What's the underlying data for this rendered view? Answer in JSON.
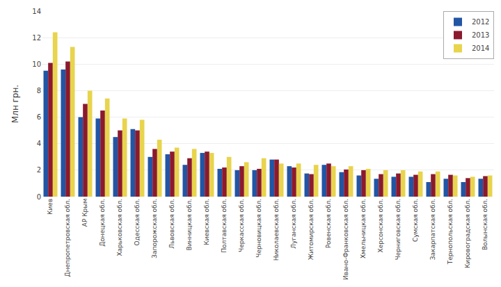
{
  "chart_data": {
    "type": "bar",
    "ylabel": "Млн грн.",
    "categories": [
      "Киев",
      "Днепропетровская обл.",
      "АР Крым",
      "Донецкая обл.",
      "Харьковская обл.",
      "Одесская обл.",
      "Запорожская обл.",
      "Львовская обл.",
      "Винницкая обл.",
      "Киевская обл.",
      "Полтавская обл.",
      "Черкасская обл.",
      "Черновицкая обл.",
      "Николаевская обл.",
      "Луганская обл.",
      "Житомирская обл.",
      "Ровенская обл.",
      "Ивано-Франковская обл.",
      "Хмельницкая обл.",
      "Херсонская обл.",
      "Черниговская обл.",
      "Сумская обл.",
      "Закарпатская обл.",
      "Тернопольская обл.",
      "Кировоградская обл.",
      "Волынская обл."
    ],
    "series": [
      {
        "name": "2012",
        "color": "#2255A4",
        "values": [
          9.5,
          9.6,
          6.0,
          5.9,
          4.5,
          5.1,
          3.0,
          3.2,
          2.4,
          3.3,
          2.1,
          2.0,
          2.0,
          2.8,
          2.3,
          1.75,
          2.4,
          1.85,
          1.6,
          1.35,
          1.5,
          1.5,
          1.1,
          1.35,
          1.1,
          1.35
        ]
      },
      {
        "name": "2013",
        "color": "#8B1A2E",
        "values": [
          10.1,
          10.2,
          7.0,
          6.5,
          5.0,
          5.0,
          3.6,
          3.4,
          2.9,
          3.4,
          2.2,
          2.3,
          2.1,
          2.8,
          2.2,
          1.7,
          2.5,
          2.05,
          2.0,
          1.7,
          1.75,
          1.65,
          1.7,
          1.65,
          1.4,
          1.55
        ]
      },
      {
        "name": "2014",
        "color": "#E8D44D",
        "values": [
          12.4,
          11.3,
          8.0,
          7.4,
          5.9,
          5.8,
          4.3,
          3.7,
          3.6,
          3.3,
          3.0,
          2.6,
          2.9,
          2.5,
          2.5,
          2.4,
          2.3,
          2.3,
          2.1,
          2.0,
          2.0,
          1.9,
          1.9,
          1.6,
          1.5,
          1.6
        ]
      }
    ],
    "ylim": [
      0,
      14
    ],
    "yticks": [
      0,
      2,
      4,
      6,
      8,
      10,
      12,
      14
    ],
    "grid": true,
    "legend": "upper right"
  }
}
